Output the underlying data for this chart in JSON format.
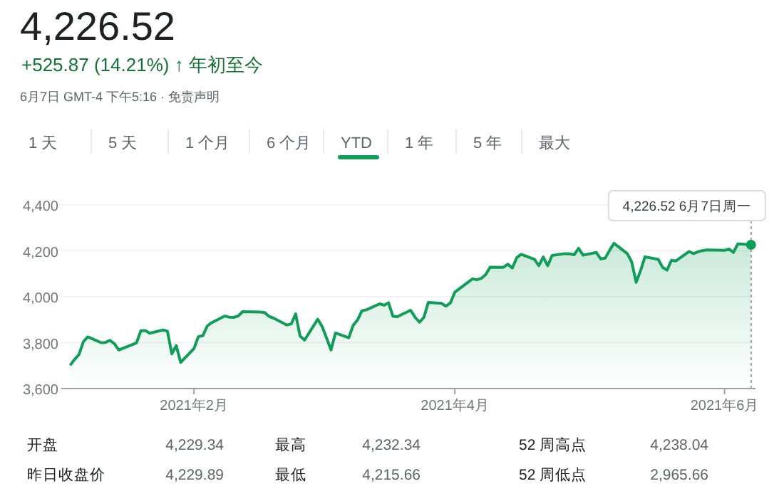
{
  "chart_data": {
    "type": "area",
    "title": "4,226.52",
    "subtitle": "+525.87 (14.21%) ↑ 年初至今",
    "x": [
      "2021-01-04",
      "2021-01-05",
      "2021-01-06",
      "2021-01-07",
      "2021-01-08",
      "2021-01-11",
      "2021-01-12",
      "2021-01-13",
      "2021-01-14",
      "2021-01-15",
      "2021-01-19",
      "2021-01-20",
      "2021-01-21",
      "2021-01-22",
      "2021-01-25",
      "2021-01-26",
      "2021-01-27",
      "2021-01-28",
      "2021-01-29",
      "2021-02-01",
      "2021-02-02",
      "2021-02-03",
      "2021-02-04",
      "2021-02-05",
      "2021-02-08",
      "2021-02-09",
      "2021-02-10",
      "2021-02-11",
      "2021-02-12",
      "2021-02-16",
      "2021-02-17",
      "2021-02-18",
      "2021-02-19",
      "2021-02-22",
      "2021-02-23",
      "2021-02-24",
      "2021-02-25",
      "2021-02-26",
      "2021-03-01",
      "2021-03-02",
      "2021-03-03",
      "2021-03-04",
      "2021-03-05",
      "2021-03-08",
      "2021-03-09",
      "2021-03-10",
      "2021-03-11",
      "2021-03-12",
      "2021-03-15",
      "2021-03-16",
      "2021-03-17",
      "2021-03-18",
      "2021-03-19",
      "2021-03-22",
      "2021-03-23",
      "2021-03-24",
      "2021-03-25",
      "2021-03-26",
      "2021-03-29",
      "2021-03-30",
      "2021-03-31",
      "2021-04-01",
      "2021-04-05",
      "2021-04-06",
      "2021-04-07",
      "2021-04-08",
      "2021-04-09",
      "2021-04-12",
      "2021-04-13",
      "2021-04-14",
      "2021-04-15",
      "2021-04-16",
      "2021-04-19",
      "2021-04-20",
      "2021-04-21",
      "2021-04-22",
      "2021-04-23",
      "2021-04-26",
      "2021-04-27",
      "2021-04-28",
      "2021-04-29",
      "2021-04-30",
      "2021-05-03",
      "2021-05-04",
      "2021-05-05",
      "2021-05-06",
      "2021-05-07",
      "2021-05-10",
      "2021-05-11",
      "2021-05-12",
      "2021-05-13",
      "2021-05-14",
      "2021-05-17",
      "2021-05-18",
      "2021-05-19",
      "2021-05-20",
      "2021-05-21",
      "2021-05-24",
      "2021-05-25",
      "2021-05-26",
      "2021-05-27",
      "2021-05-28",
      "2021-06-01",
      "2021-06-02",
      "2021-06-03",
      "2021-06-04",
      "2021-06-07"
    ],
    "series": [
      {
        "color": "#0f9d58",
        "values": [
          3701,
          3727,
          3748,
          3804,
          3825,
          3800,
          3801,
          3810,
          3796,
          3768,
          3799,
          3852,
          3853,
          3841,
          3855,
          3850,
          3751,
          3787,
          3714,
          3774,
          3826,
          3830,
          3872,
          3887,
          3916,
          3911,
          3910,
          3916,
          3935,
          3933,
          3931,
          3914,
          3907,
          3877,
          3881,
          3925,
          3829,
          3811,
          3902,
          3870,
          3820,
          3768,
          3842,
          3821,
          3875,
          3899,
          3939,
          3943,
          3969,
          3963,
          3974,
          3915,
          3913,
          3941,
          3911,
          3889,
          3910,
          3975,
          3971,
          3959,
          3973,
          4020,
          4078,
          4074,
          4080,
          4097,
          4129,
          4128,
          4142,
          4125,
          4170,
          4185,
          4163,
          4135,
          4173,
          4135,
          4180,
          4188,
          4187,
          4183,
          4211,
          4181,
          4193,
          4165,
          4168,
          4202,
          4233,
          4188,
          4152,
          4063,
          4113,
          4174,
          4163,
          4128,
          4116,
          4159,
          4156,
          4197,
          4188,
          4196,
          4201,
          4204,
          4202,
          4208,
          4193,
          4230,
          4227
        ]
      }
    ],
    "xlim": [
      "2021-01-02",
      "2021-06-08"
    ],
    "xticks": [
      {
        "value": "2021-02-01",
        "label": "2021年2月"
      },
      {
        "value": "2021-04-01",
        "label": "2021年4月"
      },
      {
        "value": "2021-06-01",
        "label": "2021年6月"
      }
    ],
    "ylim": [
      3600,
      4400
    ],
    "yticks": [
      {
        "value": 3600,
        "label": "3,600"
      },
      {
        "value": 3800,
        "label": "3,800"
      },
      {
        "value": 4000,
        "label": "4,000"
      },
      {
        "value": 4200,
        "label": "4,200"
      },
      {
        "value": 4400,
        "label": "4,400"
      }
    ],
    "grid": "y",
    "ref_lines": [
      {
        "axis": "x",
        "value": "2021-06-07",
        "line_style": "dotted",
        "color": "#9aa0a6"
      }
    ],
    "annotations": [
      {
        "text": "4,226.52  6月7日周一",
        "x": "2021-06-07",
        "y": 4226.52
      },
      "6月7日 GMT-4 下午5:16 · 免责声明",
      "1 天",
      "5 天",
      "1 个月",
      "6 个月",
      "YTD",
      "1 年",
      "5 年",
      "最大",
      "开盘",
      "4,229.34",
      "最高",
      "4,232.34",
      "52 周高点",
      "4,238.04",
      "昨日收盘价",
      "4,229.89",
      "最低",
      "4,215.66",
      "52 周低点",
      "2,965.66"
    ]
  }
}
